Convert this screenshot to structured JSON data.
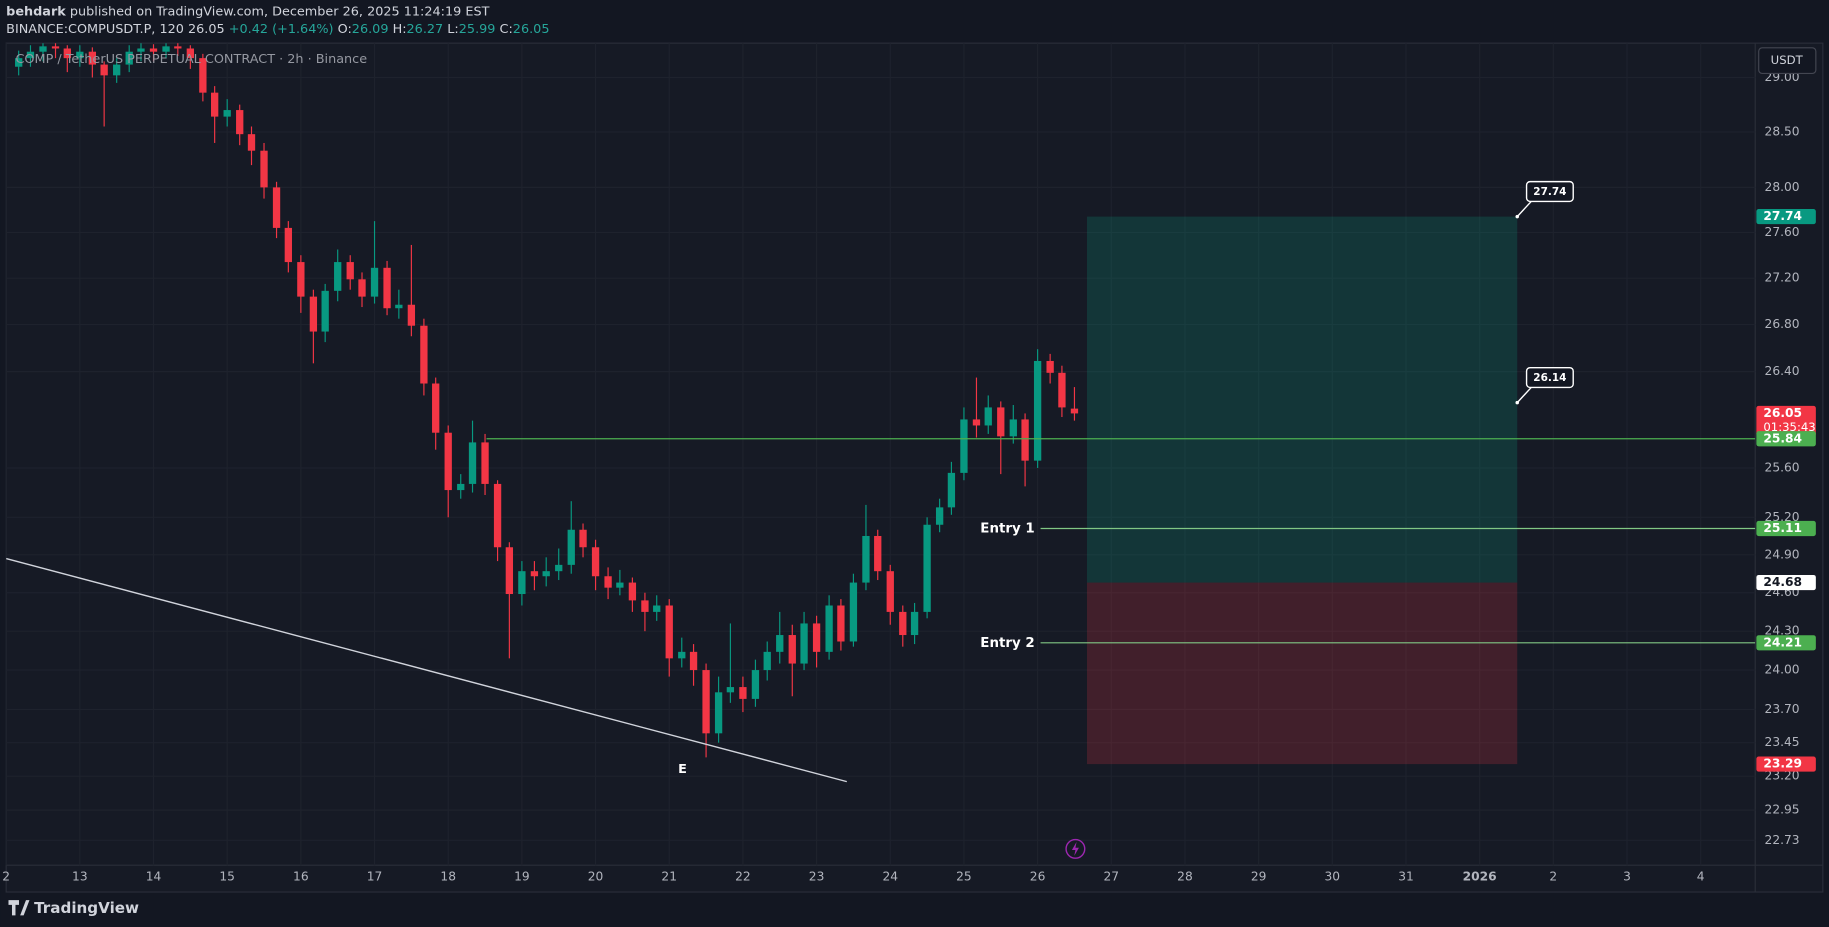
{
  "header": {
    "author": "behdark",
    "published": "published on TradingView.com, December 26, 2025 11:24:19 EST",
    "symbol": "BINANCE:COMPUSDT.P, 120",
    "change": "+0.42 (+1.64%)",
    "o": "O:",
    "h": "H:",
    "l": "L:",
    "c": "C:"
  },
  "chart_data": {
    "type": "candlestick",
    "title": "COMP / TetherUS PERPETUAL CONTRACT · 2h · Binance",
    "currency": "USDT",
    "up_color": "#089981",
    "down_color": "#f23645",
    "log_scale": true,
    "grid": true,
    "xlim": [
      12.0,
      35.74
    ],
    "ylim": [
      22.55,
      29.32
    ],
    "xticks": [
      {
        "value": 12,
        "label": "2"
      },
      13,
      14,
      15,
      16,
      17,
      18,
      19,
      20,
      21,
      22,
      23,
      24,
      25,
      26,
      27,
      28,
      29,
      30,
      31,
      {
        "value": 32,
        "label": "2026"
      },
      {
        "value": 33,
        "label": "2"
      },
      {
        "value": 34,
        "label": "3"
      },
      {
        "value": 35,
        "label": "4"
      }
    ],
    "yticks": [
      {
        "value": 29,
        "label": "29.00"
      },
      {
        "value": 28.5,
        "label": "28.50"
      },
      {
        "value": 28,
        "label": "28.00"
      },
      {
        "value": 27.6,
        "label": "27.60"
      },
      {
        "value": 27.2,
        "label": "27.20"
      },
      {
        "value": 26.8,
        "label": "26.80"
      },
      {
        "value": 26.4,
        "label": "26.40"
      },
      {
        "value": 25.6,
        "label": "25.60"
      },
      {
        "value": 25.2,
        "label": "25.20"
      },
      {
        "value": 24.9,
        "label": "24.90"
      },
      {
        "value": 24.6,
        "label": "24.60"
      },
      {
        "value": 24.3,
        "label": "24.30"
      },
      {
        "value": 24,
        "label": "24.00"
      },
      {
        "value": 23.7,
        "label": "23.70"
      },
      23.45,
      {
        "value": 23.2,
        "label": "23.20"
      },
      22.95,
      22.73
    ],
    "x": [
      12.17,
      12.33,
      12.5,
      12.67,
      12.83,
      13,
      13.17,
      13.33,
      13.5,
      13.67,
      13.83,
      14,
      14.17,
      14.33,
      14.5,
      14.67,
      14.83,
      15,
      15.17,
      15.33,
      15.5,
      15.67,
      15.83,
      16,
      16.17,
      16.33,
      16.5,
      16.67,
      16.83,
      17,
      17.17,
      17.33,
      17.5,
      17.67,
      17.83,
      18,
      18.17,
      18.33,
      18.5,
      18.67,
      18.83,
      19,
      19.17,
      19.33,
      19.5,
      19.67,
      19.83,
      20,
      20.17,
      20.33,
      20.5,
      20.67,
      20.83,
      21,
      21.17,
      21.33,
      21.5,
      21.67,
      21.83,
      22,
      22.17,
      22.33,
      22.5,
      22.67,
      22.83,
      23,
      23.17,
      23.33,
      23.5,
      23.67,
      23.83,
      24,
      24.17,
      24.33,
      24.5,
      24.67,
      24.83,
      25,
      25.17,
      25.33,
      25.5,
      25.67,
      25.83,
      26,
      26.17,
      26.33,
      26.5
    ],
    "open": [
      29.1,
      29.18,
      29.24,
      29.29,
      29.27,
      29.18,
      29.24,
      29.12,
      29.02,
      29.12,
      29.24,
      29.27,
      29.24,
      29.29,
      29.27,
      29.18,
      28.86,
      28.64,
      28.7,
      28.48,
      28.33,
      28.0,
      27.64,
      27.34,
      27.04,
      26.74,
      27.09,
      27.34,
      27.19,
      27.04,
      27.29,
      26.94,
      26.97,
      26.79,
      26.3,
      25.89,
      25.42,
      25.47,
      25.81,
      25.47,
      24.96,
      24.59,
      24.77,
      24.73,
      24.77,
      24.82,
      25.1,
      24.96,
      24.73,
      24.64,
      24.68,
      24.54,
      24.45,
      24.5,
      24.09,
      24.14,
      24.0,
      23.52,
      23.83,
      23.87,
      23.78,
      24.0,
      24.14,
      24.27,
      24.05,
      24.36,
      24.14,
      24.5,
      24.22,
      24.68,
      25.05,
      24.77,
      24.45,
      24.27,
      24.45,
      25.14,
      25.28,
      25.56,
      26.0,
      25.95,
      26.1,
      25.86,
      26.0,
      25.66,
      26.49,
      26.39,
      26.09
    ],
    "high": [
      29.25,
      29.3,
      29.32,
      29.32,
      29.3,
      29.3,
      29.28,
      29.15,
      29.18,
      29.3,
      29.32,
      29.31,
      29.32,
      29.32,
      29.3,
      29.22,
      28.92,
      28.8,
      28.75,
      28.55,
      28.4,
      28.05,
      27.7,
      27.4,
      27.1,
      27.15,
      27.45,
      27.4,
      27.25,
      27.7,
      27.35,
      27.1,
      27.49,
      26.85,
      26.35,
      25.95,
      25.55,
      25.99,
      25.88,
      25.5,
      25.0,
      24.85,
      24.85,
      24.88,
      24.95,
      25.33,
      25.15,
      25.02,
      24.8,
      24.78,
      24.72,
      24.6,
      24.58,
      24.55,
      24.25,
      24.2,
      24.05,
      23.95,
      24.36,
      23.95,
      24.08,
      24.22,
      24.45,
      24.35,
      24.45,
      24.42,
      24.58,
      24.55,
      24.75,
      25.3,
      25.1,
      24.82,
      24.5,
      24.52,
      25.2,
      25.35,
      25.65,
      26.1,
      26.35,
      26.2,
      26.15,
      26.12,
      26.05,
      26.59,
      26.55,
      26.45,
      26.27
    ],
    "low": [
      29.02,
      29.1,
      29.15,
      29.18,
      29.05,
      29.1,
      29.0,
      28.55,
      28.95,
      29.05,
      29.15,
      29.15,
      29.18,
      29.2,
      29.08,
      28.78,
      28.4,
      28.55,
      28.38,
      28.2,
      27.9,
      27.55,
      27.25,
      26.9,
      26.47,
      26.65,
      27.0,
      27.1,
      26.95,
      26.98,
      26.88,
      26.85,
      26.7,
      26.2,
      25.75,
      25.2,
      25.35,
      25.4,
      25.38,
      24.85,
      24.09,
      24.5,
      24.62,
      24.65,
      24.7,
      24.75,
      24.88,
      24.62,
      24.55,
      24.58,
      24.45,
      24.3,
      24.38,
      23.95,
      24.02,
      23.88,
      23.34,
      23.45,
      23.75,
      23.68,
      23.72,
      23.92,
      24.05,
      23.8,
      24.0,
      24.02,
      24.08,
      24.15,
      24.18,
      24.62,
      24.7,
      24.35,
      24.18,
      24.2,
      24.4,
      25.08,
      25.22,
      25.5,
      25.85,
      25.88,
      25.55,
      25.8,
      25.45,
      25.6,
      26.3,
      26.02,
      25.99
    ],
    "close": [
      29.18,
      29.24,
      29.29,
      29.27,
      29.18,
      29.24,
      29.12,
      29.02,
      29.12,
      29.24,
      29.27,
      29.24,
      29.29,
      29.27,
      29.18,
      28.86,
      28.64,
      28.7,
      28.48,
      28.33,
      28.0,
      27.64,
      27.34,
      27.04,
      26.74,
      27.09,
      27.34,
      27.19,
      27.04,
      27.29,
      26.94,
      26.97,
      26.79,
      26.3,
      25.89,
      25.42,
      25.47,
      25.81,
      25.47,
      24.96,
      24.59,
      24.77,
      24.73,
      24.77,
      24.82,
      25.1,
      24.96,
      24.73,
      24.64,
      24.68,
      24.54,
      24.45,
      24.5,
      24.09,
      24.14,
      24.0,
      23.52,
      23.83,
      23.87,
      23.78,
      24.0,
      24.14,
      24.27,
      24.05,
      24.36,
      24.14,
      24.5,
      24.22,
      24.68,
      25.05,
      24.77,
      24.45,
      24.27,
      24.45,
      25.14,
      25.28,
      25.56,
      26.0,
      25.95,
      26.1,
      25.86,
      26.0,
      25.66,
      26.49,
      26.39,
      26.1,
      26.05
    ],
    "position": {
      "start": 26.67,
      "end": 32.51,
      "target": 27.74,
      "entry": 24.68,
      "stop": 23.29,
      "profit_color": "#089981",
      "loss_color": "#f23645"
    },
    "levels": [
      {
        "price": 25.84,
        "start": 18.52,
        "color": "#4caf50"
      },
      {
        "price": 25.11,
        "start": 26.04,
        "color": "#81c784",
        "label": "Entry 1"
      },
      {
        "price": 24.21,
        "start": 26.04,
        "color": "#81c784",
        "label": "Entry 2"
      }
    ],
    "trendline": [
      {
        "x": 12.0,
        "price": 24.87
      },
      {
        "x": 23.41,
        "price": 23.16
      }
    ],
    "point_label": {
      "text": "E",
      "x": 21.18,
      "price": 23.25
    },
    "callouts": [
      {
        "x": 32.51,
        "value": 27.74
      },
      {
        "x": 32.51,
        "value": 26.14
      }
    ],
    "price_labels": [
      {
        "value": 27.74,
        "color": "#089981"
      },
      {
        "value": 26.05,
        "color": "#f23645",
        "countdown": "01:35:43"
      },
      {
        "value": 25.84,
        "color": "#4caf50"
      },
      {
        "value": 25.11,
        "color": "#4caf50"
      },
      {
        "value": 24.68,
        "color": "#ffffff"
      },
      {
        "value": 24.21,
        "color": "#4caf50"
      },
      {
        "value": 23.29,
        "color": "#f23645"
      }
    ]
  },
  "footer": {
    "brand": "TradingView"
  }
}
